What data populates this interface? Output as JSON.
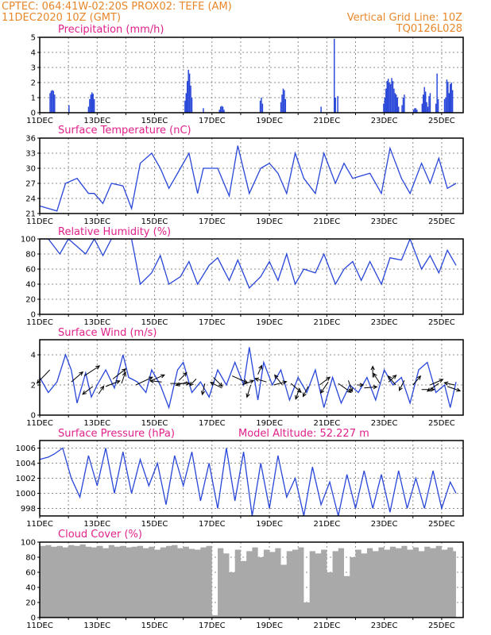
{
  "header": {
    "line1": "CPTEC:   064:41W-02:20S   PROX02: TEFE (AM)",
    "line2": "11DEC2020  10Z (GMT)",
    "grid_note": "Vertical Grid Line: 10Z",
    "run_id": "TQ0126L028"
  },
  "day_labels": [
    "11DEC",
    "13DEC",
    "15DEC",
    "17DEC",
    "19DEC",
    "21DEC",
    "23DEC",
    "25DEC"
  ],
  "colors": {
    "series": "#2846d8",
    "bars": "#2846d8",
    "cloud": "#a9a9a9",
    "title": "#e0218a",
    "header": "#e8872a"
  },
  "chart_data": [
    {
      "type": "bar",
      "title": "Precipitation (mm/h)",
      "ylim": [
        0,
        5
      ],
      "yticks": [
        "0",
        "1",
        "2",
        "3",
        "4",
        "5"
      ],
      "x": [
        0.36,
        0.4,
        0.44,
        0.48,
        0.52,
        1.02,
        1.7,
        1.74,
        1.78,
        1.82,
        1.86,
        1.9,
        5.06,
        5.1,
        5.14,
        5.18,
        5.22,
        5.26,
        5.3,
        5.7,
        6.26,
        6.3,
        6.34,
        6.38,
        6.42,
        7.68,
        7.72,
        7.76,
        8.4,
        8.44,
        8.48,
        8.52,
        8.56,
        9.8,
        10.26,
        10.3,
        10.38,
        11.98,
        12.02,
        12.06,
        12.1,
        12.14,
        12.18,
        12.22,
        12.26,
        12.3,
        12.34,
        12.38,
        12.42,
        12.46,
        12.5,
        12.62,
        12.66,
        12.7,
        13.02,
        13.06,
        13.1,
        13.14,
        13.32,
        13.36,
        13.4,
        13.44,
        13.48,
        13.52,
        13.56,
        13.6,
        13.8,
        13.84,
        13.88,
        14.1,
        14.14,
        14.18,
        14.22,
        14.26,
        14.3,
        14.34,
        14.38
      ],
      "values": [
        1.3,
        1.45,
        1.5,
        1.45,
        1.2,
        0.5,
        0.4,
        0.9,
        1.2,
        1.35,
        1.25,
        0.9,
        0.8,
        1.3,
        2.1,
        2.85,
        2.6,
        1.8,
        1.0,
        0.3,
        0.2,
        0.4,
        0.45,
        0.4,
        0.2,
        0.8,
        1.0,
        0.6,
        0.7,
        1.2,
        1.6,
        1.5,
        0.9,
        0.4,
        4.9,
        1.0,
        1.1,
        0.6,
        1.0,
        1.6,
        2.1,
        2.25,
        2.0,
        1.9,
        2.3,
        2.1,
        1.6,
        1.3,
        1.2,
        1.0,
        0.4,
        0.5,
        1.0,
        1.2,
        0.2,
        0.3,
        0.3,
        0.2,
        0.6,
        1.2,
        1.7,
        1.4,
        0.7,
        0.4,
        1.1,
        1.3,
        0.6,
        2.6,
        0.9,
        0.9,
        1.0,
        2.2,
        2.05,
        1.3,
        1.9,
        2.0,
        1.5
      ]
    },
    {
      "type": "line",
      "title": "Surface Temperature (nC)",
      "ylim": [
        21,
        36
      ],
      "yticks": [
        "21",
        "24",
        "27",
        "30",
        "33",
        "36"
      ],
      "x": [
        0,
        0.6,
        0.9,
        1.3,
        1.7,
        1.9,
        2.2,
        2.5,
        2.9,
        3.2,
        3.5,
        3.9,
        4.2,
        4.5,
        4.9,
        5.2,
        5.5,
        5.7,
        5.9,
        6.2,
        6.6,
        6.9,
        7.3,
        7.7,
        8.0,
        8.3,
        8.6,
        8.9,
        9.2,
        9.6,
        9.9,
        10.3,
        10.6,
        10.9,
        11.2,
        11.5,
        11.9,
        12.2,
        12.6,
        12.9,
        13.3,
        13.6,
        13.9,
        14.2,
        14.5
      ],
      "values": [
        22.5,
        21.5,
        27,
        28,
        25,
        25,
        23,
        27,
        26.5,
        22,
        31,
        33,
        30,
        26,
        30,
        33,
        25,
        30,
        30,
        30,
        24.5,
        34.5,
        25,
        30,
        31,
        29,
        25,
        33,
        28,
        25,
        33,
        27,
        31,
        28,
        28.5,
        29,
        25,
        34,
        28,
        25,
        31,
        27,
        32,
        26,
        27
      ]
    },
    {
      "type": "line",
      "title": "Relative Humidity (%)",
      "ylim": [
        0,
        100
      ],
      "yticks": [
        "0",
        "20",
        "40",
        "60",
        "80",
        "100"
      ],
      "x": [
        0,
        0.3,
        0.7,
        1.0,
        1.3,
        1.6,
        1.9,
        2.2,
        2.5,
        2.9,
        3.2,
        3.5,
        3.9,
        4.2,
        4.5,
        4.9,
        5.2,
        5.5,
        5.9,
        6.2,
        6.6,
        6.9,
        7.3,
        7.7,
        8.0,
        8.3,
        8.6,
        8.9,
        9.2,
        9.6,
        9.9,
        10.3,
        10.6,
        10.9,
        11.2,
        11.5,
        11.9,
        12.2,
        12.6,
        12.9,
        13.3,
        13.6,
        13.9,
        14.2,
        14.5
      ],
      "values": [
        100,
        100,
        80,
        100,
        90,
        80,
        100,
        78,
        100,
        100,
        100,
        40,
        55,
        78,
        40,
        50,
        70,
        40,
        65,
        75,
        45,
        72,
        35,
        50,
        70,
        45,
        80,
        40,
        60,
        55,
        80,
        40,
        60,
        70,
        45,
        70,
        40,
        75,
        72,
        100,
        60,
        78,
        55,
        85,
        65
      ]
    },
    {
      "type": "line",
      "title": "Surface Wind (m/s)",
      "ylim": [
        0,
        5
      ],
      "yticks": [
        "0",
        "2",
        "4"
      ],
      "x": [
        0,
        0.3,
        0.6,
        0.9,
        1.1,
        1.3,
        1.6,
        1.8,
        2.0,
        2.3,
        2.6,
        2.9,
        3.1,
        3.4,
        3.7,
        3.9,
        4.2,
        4.5,
        4.8,
        5.0,
        5.3,
        5.6,
        5.9,
        6.2,
        6.5,
        6.8,
        7.1,
        7.3,
        7.6,
        7.8,
        8.1,
        8.4,
        8.7,
        9.0,
        9.3,
        9.6,
        9.9,
        10.2,
        10.5,
        10.8,
        11.1,
        11.4,
        11.7,
        12.0,
        12.3,
        12.6,
        12.9,
        13.2,
        13.5,
        13.8,
        14.1,
        14.3,
        14.5
      ],
      "values": [
        2.5,
        1.5,
        2.2,
        4.0,
        3.0,
        0.8,
        2.8,
        1.2,
        2.0,
        3.0,
        1.8,
        4.0,
        2.5,
        2.2,
        1.5,
        3.0,
        2.0,
        0.5,
        3.0,
        3.5,
        1.5,
        2.2,
        1.2,
        3.0,
        2.0,
        3.5,
        2.0,
        4.5,
        1.0,
        3.5,
        2.0,
        3.0,
        1.0,
        2.5,
        1.5,
        3.0,
        0.5,
        2.5,
        0.8,
        2.0,
        1.5,
        2.5,
        1.0,
        3.0,
        2.0,
        2.5,
        0.8,
        3.0,
        3.5,
        1.5,
        2.0,
        0.5,
        2.2
      ]
    },
    {
      "type": "line",
      "title": "Surface Pressure (hPa)",
      "annotation": "Model Altitude: 52.227  m",
      "ylim": [
        997,
        1007
      ],
      "yticks": [
        "998",
        "1000",
        "1002",
        "1004",
        "1006"
      ],
      "x": [
        0,
        0.3,
        0.5,
        0.8,
        1.1,
        1.4,
        1.7,
        2.0,
        2.3,
        2.6,
        2.9,
        3.2,
        3.5,
        3.8,
        4.1,
        4.4,
        4.7,
        5.0,
        5.3,
        5.6,
        5.9,
        6.2,
        6.5,
        6.8,
        7.1,
        7.4,
        7.7,
        8.0,
        8.3,
        8.6,
        8.9,
        9.2,
        9.5,
        9.8,
        10.1,
        10.4,
        10.7,
        11.0,
        11.3,
        11.6,
        11.9,
        12.2,
        12.5,
        12.8,
        13.1,
        13.4,
        13.7,
        14.0,
        14.3,
        14.5
      ],
      "values": [
        1004.5,
        1004.8,
        1005.2,
        1006,
        1002,
        999.5,
        1005,
        1001,
        1006,
        1000,
        1005.5,
        1000,
        1004.5,
        1001,
        1004,
        998.5,
        1005,
        1001,
        1005.5,
        999,
        1004,
        998,
        1006,
        999,
        1005.5,
        997,
        1004,
        998,
        1005,
        999.5,
        1002,
        997,
        1003.5,
        998.5,
        1001.5,
        997,
        1002.5,
        998,
        1003,
        998,
        1002.5,
        997.5,
        1003,
        998,
        1002,
        998,
        1003,
        998,
        1001.5,
        1000
      ]
    },
    {
      "type": "area",
      "title": "Cloud Cover (%)",
      "ylim": [
        0,
        100
      ],
      "yticks": [
        "0",
        "20",
        "40",
        "60",
        "80",
        "100"
      ],
      "x": [
        0,
        0.2,
        0.4,
        0.6,
        0.8,
        1.0,
        1.2,
        1.4,
        1.6,
        1.8,
        2.0,
        2.2,
        2.4,
        2.6,
        2.8,
        3.0,
        3.2,
        3.4,
        3.6,
        3.8,
        4.0,
        4.2,
        4.4,
        4.6,
        4.8,
        5.0,
        5.2,
        5.4,
        5.6,
        5.8,
        6.0,
        6.2,
        6.4,
        6.6,
        6.8,
        7.0,
        7.2,
        7.4,
        7.6,
        7.8,
        8.0,
        8.2,
        8.4,
        8.6,
        8.8,
        9.0,
        9.2,
        9.4,
        9.6,
        9.8,
        10.0,
        10.2,
        10.4,
        10.6,
        10.8,
        11.0,
        11.2,
        11.4,
        11.6,
        11.8,
        12.0,
        12.2,
        12.4,
        12.6,
        12.8,
        13.0,
        13.2,
        13.4,
        13.6,
        13.8,
        14.0,
        14.2,
        14.4,
        14.5
      ],
      "values": [
        95,
        96,
        94,
        95,
        93,
        96,
        95,
        97,
        94,
        93,
        95,
        92,
        96,
        94,
        95,
        93,
        94,
        95,
        92,
        94,
        90,
        93,
        95,
        96,
        92,
        94,
        91,
        90,
        93,
        95,
        3,
        92,
        85,
        60,
        90,
        75,
        88,
        93,
        80,
        90,
        87,
        92,
        70,
        88,
        90,
        93,
        20,
        88,
        85,
        90,
        60,
        88,
        92,
        55,
        80,
        90,
        85,
        92,
        88,
        93,
        90,
        94,
        92,
        95,
        90,
        93,
        88,
        94,
        92,
        95,
        90,
        93,
        88,
        92
      ]
    }
  ]
}
